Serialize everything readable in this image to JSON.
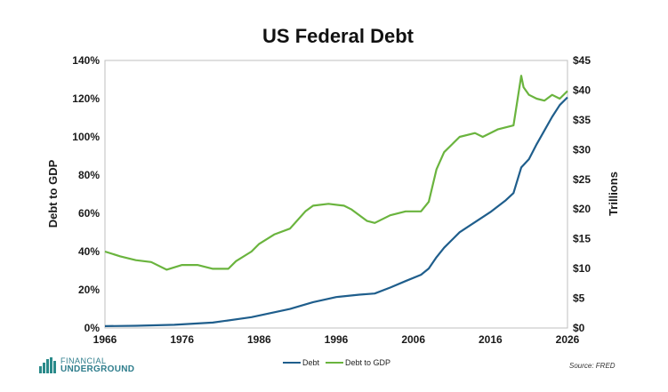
{
  "chart_data": {
    "type": "line",
    "title": "US Federal Debt",
    "ylabel_left": "Debt to GDP",
    "ylabel_right": "Trillions",
    "x_ticks": [
      "1966",
      "1976",
      "1986",
      "1996",
      "2006",
      "2016",
      "2026"
    ],
    "y_left_ticks": [
      "0%",
      "20%",
      "40%",
      "60%",
      "80%",
      "100%",
      "120%",
      "140%"
    ],
    "y_right_ticks": [
      "$0",
      "$5",
      "$10",
      "$15",
      "$20",
      "$25",
      "$30",
      "$35",
      "$40",
      "$45"
    ],
    "xlim": [
      1966,
      2026
    ],
    "ylim_left": [
      0,
      140
    ],
    "ylim_right": [
      0,
      45
    ],
    "grid": "horizontal off, plot border gray",
    "legend_placement": "bottom-center",
    "series": [
      {
        "name": "Debt",
        "axis": "right",
        "color": "#1f5e8c",
        "x": [
          1966,
          1970,
          1975,
          1980,
          1985,
          1990,
          1993,
          1996,
          1999,
          2001,
          2003,
          2005,
          2007,
          2008,
          2009,
          2010,
          2012,
          2014,
          2016,
          2018,
          2019,
          2020,
          2021,
          2022,
          2023,
          2024,
          2025,
          2026
        ],
        "values": [
          0.32,
          0.38,
          0.54,
          0.91,
          1.82,
          3.2,
          4.35,
          5.2,
          5.6,
          5.8,
          6.8,
          7.9,
          8.95,
          10.0,
          11.9,
          13.5,
          16.1,
          17.8,
          19.5,
          21.5,
          22.7,
          27.0,
          28.4,
          30.9,
          33.2,
          35.5,
          37.5,
          38.8
        ]
      },
      {
        "name": "Debt to GDP",
        "axis": "left",
        "color": "#6ab43e",
        "x": [
          1966,
          1968,
          1970,
          1972,
          1974,
          1976,
          1978,
          1980,
          1982,
          1983,
          1985,
          1986,
          1988,
          1990,
          1992,
          1993,
          1995,
          1997,
          1998,
          2000,
          2001,
          2003,
          2005,
          2007,
          2008,
          2009,
          2010,
          2012,
          2014,
          2015,
          2017,
          2019,
          2020,
          2020.3,
          2021,
          2022,
          2023,
          2024,
          2025,
          2026
        ],
        "values": [
          40,
          37.5,
          35.5,
          34.5,
          30.5,
          33,
          33,
          31,
          31,
          35,
          40,
          44,
          49,
          52,
          61,
          64,
          65,
          64,
          62,
          56,
          55,
          59,
          61,
          61,
          66,
          83,
          92,
          100,
          102,
          100,
          104,
          106,
          132,
          126,
          122,
          120,
          119,
          122,
          120,
          124
        ]
      }
    ]
  },
  "legend": [
    {
      "label": "Debt",
      "color": "#1f5e8c"
    },
    {
      "label": "Debt to GDP",
      "color": "#6ab43e"
    }
  ],
  "source_note": "Source: FRED",
  "logo": {
    "line1": "FINANCIAL",
    "line2": "UNDERGROUND"
  }
}
